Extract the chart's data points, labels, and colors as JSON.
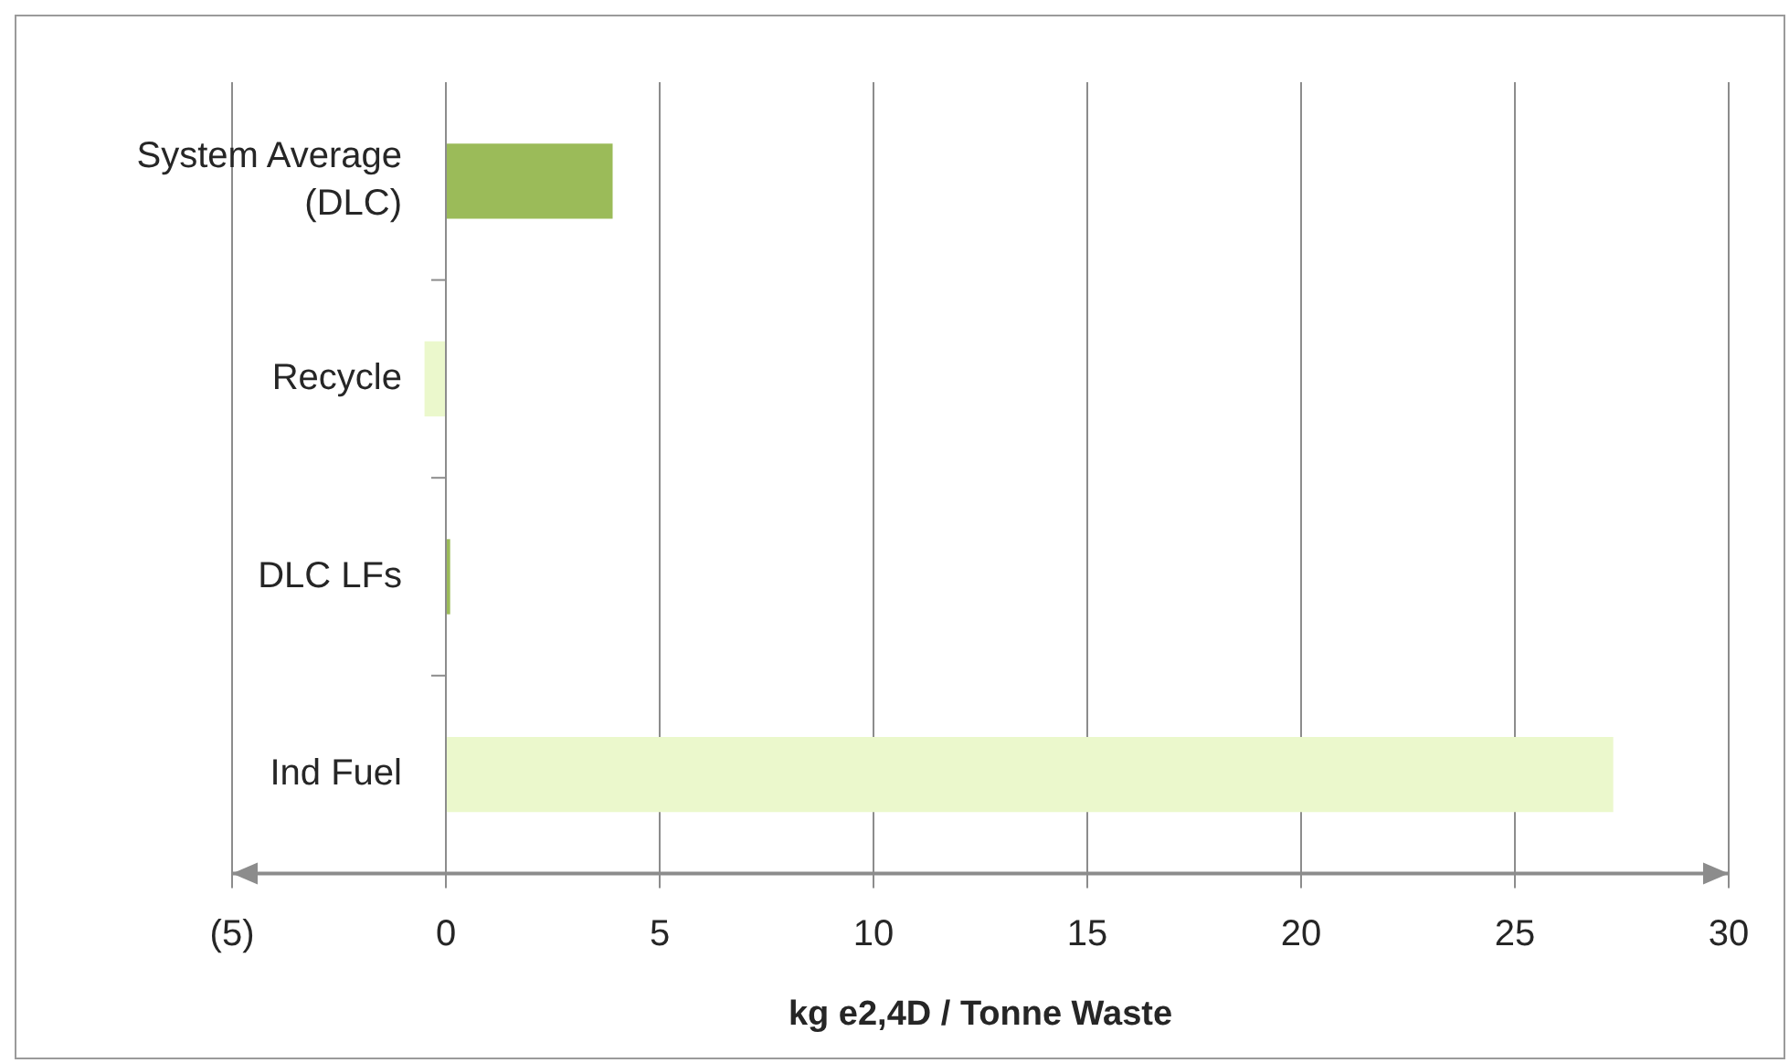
{
  "chart_data": {
    "type": "bar",
    "orientation": "horizontal",
    "categories": [
      "System Average (DLC)",
      "Recycle",
      "DLC LFs",
      "Ind Fuel"
    ],
    "values": [
      3.9,
      -0.5,
      0.1,
      27.3
    ],
    "colors": [
      "#9bbb59",
      "#ebf8cc",
      "#9bbb59",
      "#ebf8cc"
    ],
    "xlabel": "kg e2,4D / Tonne Waste",
    "xlim": [
      -5,
      30
    ],
    "xticks": [
      {
        "value": -5,
        "label": "(5)"
      },
      0,
      5,
      10,
      15,
      20,
      25,
      30
    ],
    "grid": "x",
    "legend": false
  }
}
